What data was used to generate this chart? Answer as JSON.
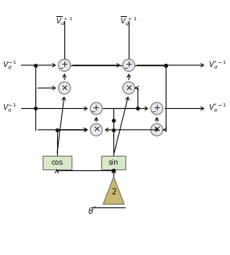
{
  "figsize": [
    2.86,
    3.16
  ],
  "dpi": 100,
  "bg_color": "#ffffff",
  "circle_color": "#e8e8f0",
  "circle_edge": "#666666",
  "box_color": "#d8e8c8",
  "box_edge": "#666666",
  "tri_color": "#c8b870",
  "line_color": "#111111",
  "text_color": "#111111"
}
